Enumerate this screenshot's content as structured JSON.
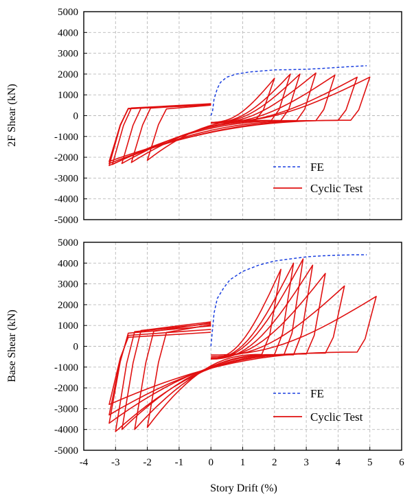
{
  "chart_data": [
    {
      "type": "line",
      "ylabel": "2F Shear (kN)",
      "xlabel": "",
      "xlim": [
        -4,
        6
      ],
      "ylim": [
        -5000,
        5000
      ],
      "xticks": [
        "-4",
        "-3",
        "-2",
        "-1",
        "0",
        "1",
        "2",
        "3",
        "4",
        "5",
        "6"
      ],
      "yticks": [
        "-5000",
        "-4000",
        "-3000",
        "-2000",
        "-1000",
        "0",
        "1000",
        "2000",
        "3000",
        "4000",
        "5000"
      ],
      "show_x_tick_labels": false,
      "grid": true,
      "legend": {
        "position": "bottom-right",
        "entries": [
          "FE",
          "Cyclic Test"
        ]
      },
      "series": [
        {
          "name": "FE",
          "color": "#1a3fe0",
          "style": "dashed",
          "x": [
            0.0,
            0.05,
            0.1,
            0.2,
            0.3,
            0.5,
            0.8,
            1.2,
            1.6,
            2.0,
            2.5,
            3.0,
            3.5,
            4.0,
            4.5,
            4.9
          ],
          "y": [
            0,
            200,
            800,
            1300,
            1600,
            1850,
            2000,
            2100,
            2150,
            2200,
            2210,
            2230,
            2270,
            2320,
            2370,
            2400
          ]
        },
        {
          "name": "Cyclic Test",
          "color": "#e01010",
          "style": "solid",
          "cycles": [
            {
              "xp": 2.0,
              "yp": 1800,
              "xn": -2.0,
              "yn": -2150
            },
            {
              "xp": 2.5,
              "yp": 2000,
              "xn": -2.5,
              "yn": -2250
            },
            {
              "xp": 2.8,
              "yp": 2000,
              "xn": -2.8,
              "yn": -2300
            },
            {
              "xp": 3.3,
              "yp": 2050,
              "xn": -3.1,
              "yn": -2350
            },
            {
              "xp": 3.9,
              "yp": 1950,
              "xn": -3.2,
              "yn": -2400
            },
            {
              "xp": 4.6,
              "yp": 1850,
              "xn": -3.2,
              "yn": -2300
            },
            {
              "xp": 5.0,
              "yp": 1850,
              "xn": -3.2,
              "yn": -2200
            }
          ]
        }
      ]
    },
    {
      "type": "line",
      "ylabel": "Base Shear (kN)",
      "xlabel": "Story Drift (%)",
      "xlim": [
        -4,
        6
      ],
      "ylim": [
        -5000,
        5000
      ],
      "xticks": [
        "-4",
        "-3",
        "-2",
        "-1",
        "0",
        "1",
        "2",
        "3",
        "4",
        "5",
        "6"
      ],
      "yticks": [
        "-5000",
        "-4000",
        "-3000",
        "-2000",
        "-1000",
        "0",
        "1000",
        "2000",
        "3000",
        "4000",
        "5000"
      ],
      "show_x_tick_labels": true,
      "grid": true,
      "legend": {
        "position": "bottom-right",
        "entries": [
          "FE",
          "Cyclic Test"
        ]
      },
      "series": [
        {
          "name": "FE",
          "color": "#1a3fe0",
          "style": "dashed",
          "x": [
            0.0,
            0.05,
            0.1,
            0.2,
            0.4,
            0.6,
            1.0,
            1.5,
            2.0,
            2.5,
            3.0,
            3.5,
            4.0,
            4.5,
            4.9
          ],
          "y": [
            0,
            800,
            1600,
            2300,
            2800,
            3200,
            3600,
            3900,
            4100,
            4200,
            4300,
            4350,
            4380,
            4400,
            4400
          ]
        },
        {
          "name": "Cyclic Test",
          "color": "#e01010",
          "style": "solid",
          "cycles": [
            {
              "xp": 2.2,
              "yp": 3700,
              "xn": -2.0,
              "yn": -3900
            },
            {
              "xp": 2.6,
              "yp": 4000,
              "xn": -2.4,
              "yn": -4000
            },
            {
              "xp": 2.9,
              "yp": 4200,
              "xn": -2.8,
              "yn": -4000
            },
            {
              "xp": 3.2,
              "yp": 3900,
              "xn": -3.0,
              "yn": -4100
            },
            {
              "xp": 3.6,
              "yp": 3500,
              "xn": -3.2,
              "yn": -3700
            },
            {
              "xp": 4.2,
              "yp": 2900,
              "xn": -3.2,
              "yn": -3300
            },
            {
              "xp": 5.2,
              "yp": 2400,
              "xn": -3.2,
              "yn": -2800
            }
          ]
        }
      ]
    }
  ]
}
